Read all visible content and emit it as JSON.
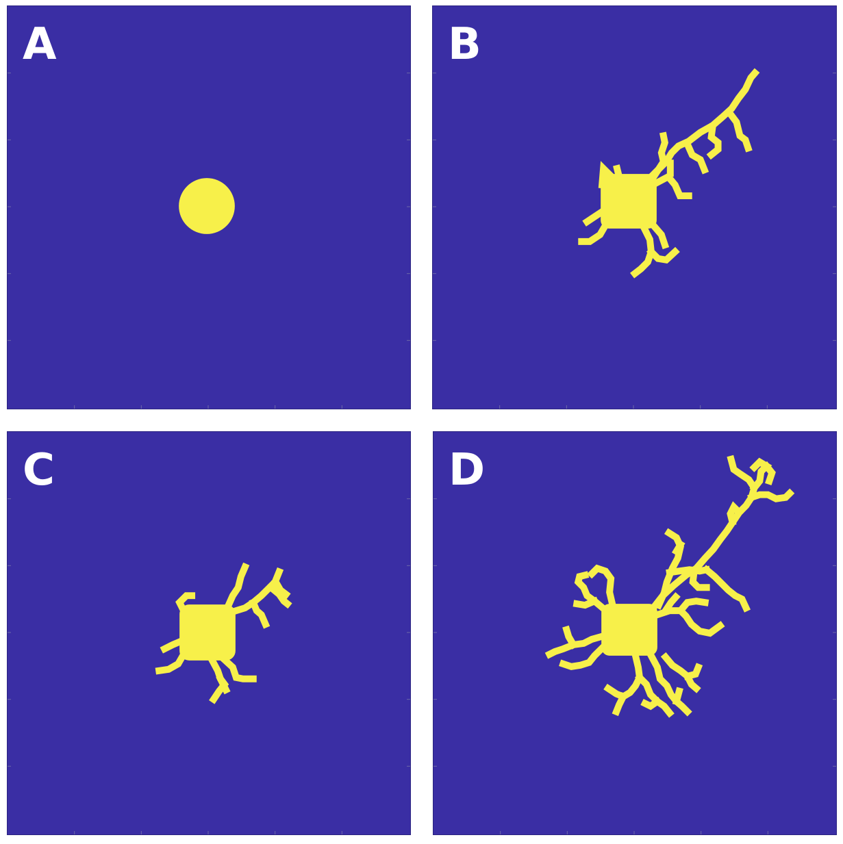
{
  "colors": {
    "field": "#3a2ea4",
    "cell": "#f7f04a",
    "label": "#ffffff"
  },
  "panels": [
    {
      "label": "A"
    },
    {
      "label": "B"
    },
    {
      "label": "C"
    },
    {
      "label": "D"
    }
  ]
}
